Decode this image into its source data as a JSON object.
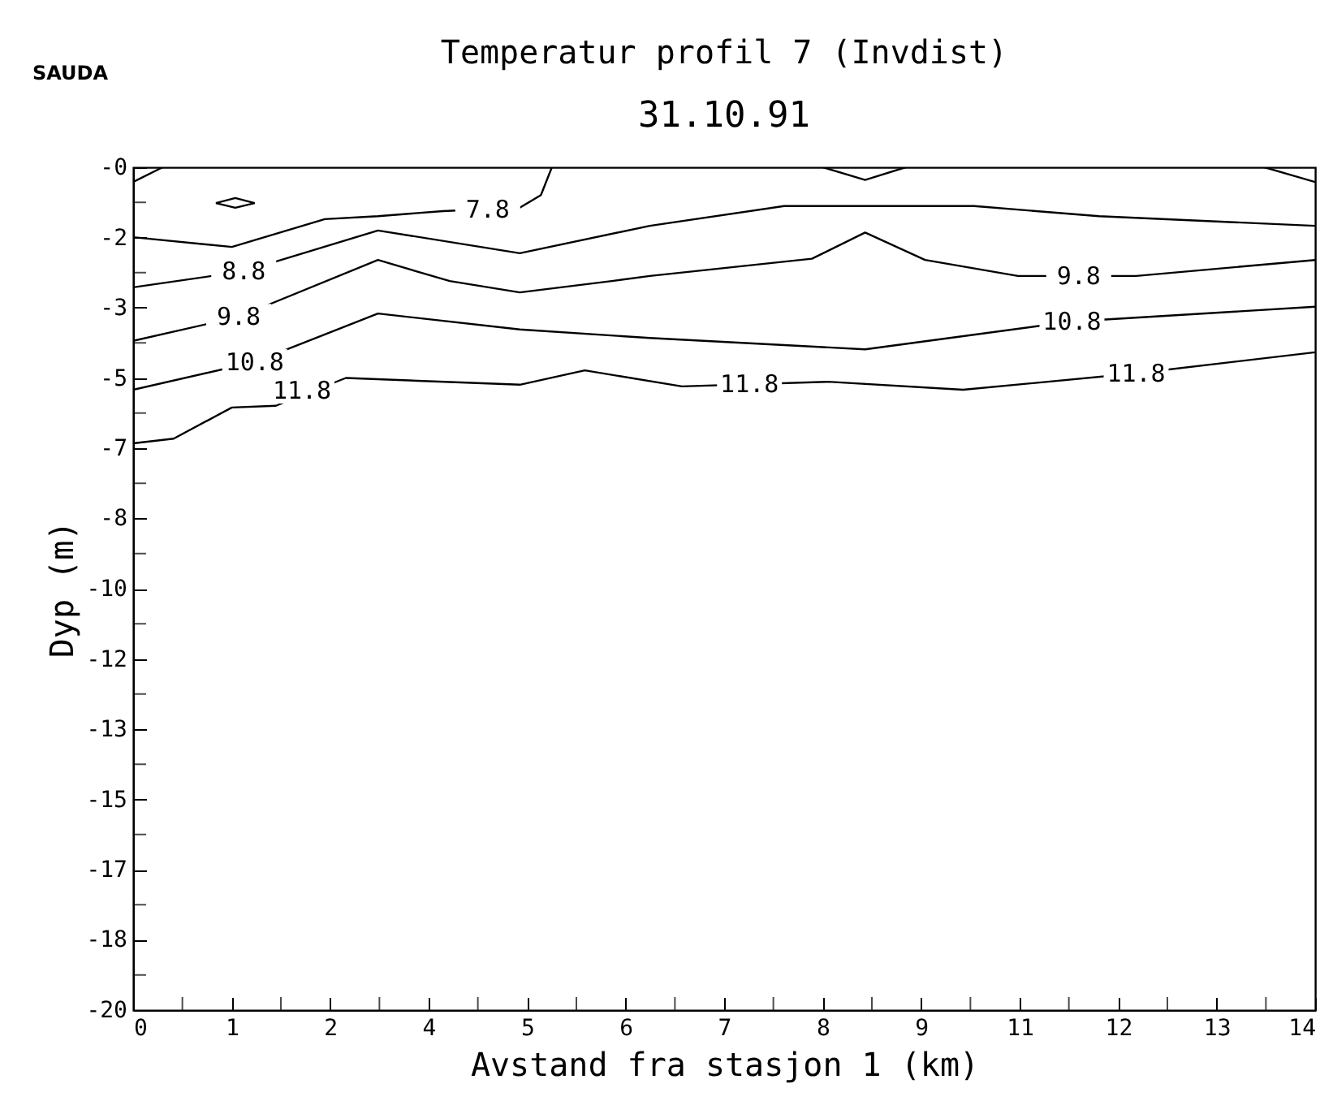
{
  "chart_data": {
    "type": "line",
    "title": "Temperatur profil 7 (Invdist)",
    "subtitle": "31.10.91",
    "xlabel": "Avstand fra stasjon 1 (km)",
    "ylabel": "Dyp (m)",
    "xlim": [
      0,
      14
    ],
    "ylim": [
      -20,
      0
    ],
    "xticks": [
      0,
      {
        "value": 0.583,
        "label": null
      },
      {
        "value": 1.167,
        "label": "1"
      },
      {
        "value": 1.75,
        "label": null
      },
      {
        "value": 2.333,
        "label": "2"
      },
      {
        "value": 2.917,
        "label": null
      },
      {
        "value": 3.5,
        "label": "4"
      },
      {
        "value": 4.083,
        "label": null
      },
      {
        "value": 4.667,
        "label": "5"
      },
      {
        "value": 5.25,
        "label": null
      },
      {
        "value": 5.833,
        "label": "6"
      },
      {
        "value": 6.417,
        "label": null
      },
      7,
      {
        "value": 7.583,
        "label": null
      },
      {
        "value": 8.167,
        "label": "8"
      },
      {
        "value": 8.75,
        "label": null
      },
      {
        "value": 9.333,
        "label": "9"
      },
      {
        "value": 9.917,
        "label": null
      },
      {
        "value": 10.5,
        "label": "11"
      },
      {
        "value": 11.083,
        "label": null
      },
      {
        "value": 11.667,
        "label": "12"
      },
      {
        "value": 12.25,
        "label": null
      },
      {
        "value": 12.833,
        "label": "13"
      },
      {
        "value": 13.417,
        "label": null
      },
      14
    ],
    "yticks": [
      {
        "value": 0,
        "label": "-0"
      },
      {
        "value": -0.833,
        "label": null
      },
      {
        "value": -1.667,
        "label": "-2"
      },
      {
        "value": -2.5,
        "label": null
      },
      {
        "value": -3.333,
        "label": "-3"
      },
      {
        "value": -4.167,
        "label": null
      },
      -5,
      {
        "value": -5.833,
        "label": null
      },
      {
        "value": -6.667,
        "label": "-7"
      },
      {
        "value": -7.5,
        "label": null
      },
      {
        "value": -8.333,
        "label": "-8"
      },
      {
        "value": -9.167,
        "label": null
      },
      -10,
      {
        "value": -10.833,
        "label": null
      },
      {
        "value": -11.667,
        "label": "-12"
      },
      {
        "value": -12.5,
        "label": null
      },
      {
        "value": -13.333,
        "label": "-13"
      },
      {
        "value": -14.167,
        "label": null
      },
      -15,
      {
        "value": -15.833,
        "label": null
      },
      {
        "value": -16.667,
        "label": "-17"
      },
      {
        "value": -17.5,
        "label": null
      },
      {
        "value": -18.333,
        "label": "-18"
      },
      {
        "value": -19.167,
        "label": null
      },
      -20
    ],
    "grid": false,
    "marker": "none",
    "line_style": "solid",
    "series": [
      {
        "color": "#000000",
        "x": [
          0,
          1.17,
          2.27,
          2.9,
          3.67,
          4.58,
          4.83,
          4.96
        ],
        "values": [
          -1.66,
          -1.89,
          -1.23,
          -1.16,
          -1.04,
          -0.96,
          -0.66,
          0
        ]
      },
      {
        "color": "#000000",
        "x": [
          0,
          1.31,
          2.9,
          4.58,
          6.12,
          7.71,
          9.96,
          11.44,
          14
        ],
        "values": [
          -2.85,
          -2.47,
          -1.5,
          -2.04,
          -1.39,
          -0.92,
          -0.92,
          -1.16,
          -1.39
        ]
      },
      {
        "color": "#000000",
        "x": [
          0,
          1.25,
          2.9,
          3.75,
          4.58,
          5.67,
          6.12,
          8.04,
          8.67,
          9.38,
          10.48,
          11.88,
          14
        ],
        "values": [
          -4.12,
          -3.55,
          -2.2,
          -2.7,
          -2.97,
          -2.7,
          -2.58,
          -2.17,
          -1.55,
          -2.2,
          -2.58,
          -2.58,
          -2.2
        ]
      },
      {
        "color": "#000000",
        "x": [
          0,
          1.44,
          2.9,
          4.58,
          6.12,
          8.67,
          11.12,
          14
        ],
        "values": [
          -5.28,
          -4.62,
          -3.47,
          -3.85,
          -4.05,
          -4.32,
          -3.66,
          -3.31
        ]
      },
      {
        "color": "#000000",
        "x": [
          0,
          0.48,
          1.17,
          1.69,
          2.52,
          4.58,
          5.35,
          6.5,
          8.23,
          9.83,
          11.88,
          14
        ],
        "values": [
          -6.55,
          -6.44,
          -5.7,
          -5.66,
          -5.0,
          -5.16,
          -4.82,
          -5.2,
          -5.09,
          -5.28,
          -4.89,
          -4.39
        ]
      },
      {
        "color": "#000000",
        "x": [
          0.98,
          1.21,
          1.44
        ],
        "values": [
          -0.85,
          -0.73,
          -0.85
        ]
      },
      {
        "color": "#000000",
        "x": [
          0.98,
          1.21,
          1.44
        ],
        "values": [
          -0.85,
          -0.96,
          -0.85
        ]
      },
      {
        "color": "#000000",
        "x": [
          0,
          0.35
        ],
        "values": [
          -0.35,
          0
        ]
      },
      {
        "color": "#000000",
        "x": [
          8.17,
          8.67,
          9.15
        ],
        "values": [
          0,
          -0.3,
          0
        ]
      },
      {
        "color": "#000000",
        "x": [
          13.4,
          14
        ],
        "values": [
          0,
          -0.35
        ]
      }
    ],
    "annotations": [
      "SAUDA",
      {
        "text": "7.8",
        "x": 4.2,
        "y": -1.0
      },
      {
        "text": "8.8",
        "x": 1.31,
        "y": -2.47
      },
      {
        "text": "9.8",
        "x": 1.25,
        "y": -3.55
      },
      {
        "text": "9.8",
        "x": 11.2,
        "y": -2.58
      },
      {
        "text": "10.8",
        "x": 1.44,
        "y": -4.62
      },
      {
        "text": "10.8",
        "x": 11.12,
        "y": -3.66
      },
      {
        "text": "11.8",
        "x": 2.0,
        "y": -5.3
      },
      {
        "text": "11.8",
        "x": 7.3,
        "y": -5.15
      },
      {
        "text": "11.8",
        "x": 11.88,
        "y": -4.89
      }
    ]
  }
}
